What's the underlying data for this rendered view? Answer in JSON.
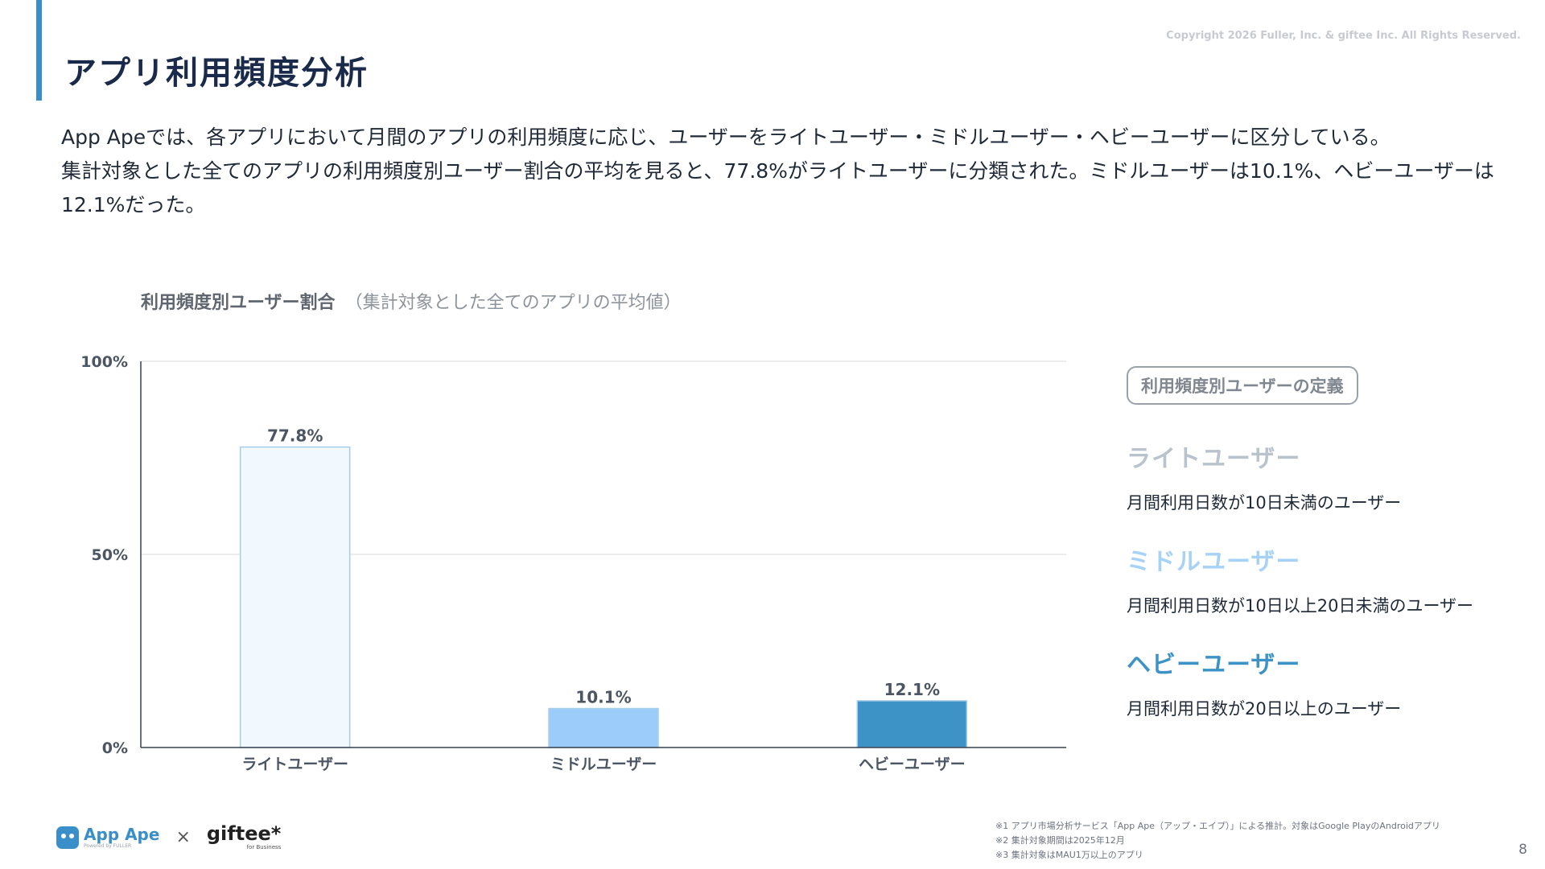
{
  "header": {
    "title": "アプリ利用頻度分析",
    "copyright": "Copyright 2026 Fuller, Inc. & giftee Inc. All Rights Reserved."
  },
  "intro": {
    "line1": "App Apeでは、各アプリにおいて月間のアプリの利用頻度に応じ、ユーザーをライトユーザー・ミドルユーザー・ヘビーユーザーに区分している。",
    "line2": "集計対象とした全てのアプリの利用頻度別ユーザー割合の平均を見ると、77.8%がライトユーザーに分類された。ミドルユーザーは10.1%、ヘビーユーザーは12.1%だった。"
  },
  "chart_data": {
    "type": "bar",
    "title": "利用頻度別ユーザー割合",
    "subtitle": "（集計対象とした全てのアプリの平均値）",
    "categories": [
      "ライトユーザー",
      "ミドルユーザー",
      "ヘビーユーザー"
    ],
    "values": [
      77.8,
      10.1,
      12.1
    ],
    "data_labels": [
      "77.8%",
      "10.1%",
      "12.1%"
    ],
    "bar_colors": [
      "#f1f8fe",
      "#9ccdfa",
      "#3d93c6"
    ],
    "bar_stroke": "#a8cde8",
    "yticks": [
      0,
      50,
      100
    ],
    "ytick_labels": [
      "0%",
      "50%",
      "100%"
    ],
    "ylim": [
      0,
      100
    ],
    "xlabel": "",
    "ylabel": "",
    "grid": true
  },
  "definitions": {
    "badge": "利用頻度別ユーザーの定義",
    "items": [
      {
        "name": "ライトユーザー",
        "desc": "月間利用日数が10日未満のユーザー",
        "color": "#b8c3ce"
      },
      {
        "name": "ミドルユーザー",
        "desc": "月間利用日数が10日以上20日未満のユーザー",
        "color": "#a7d2f7"
      },
      {
        "name": "ヘビーユーザー",
        "desc": "月間利用日数が20日以上のユーザー",
        "color": "#3d93c6"
      }
    ]
  },
  "footer": {
    "appape_name": "App Ape",
    "appape_powered": "Powered by FULLER",
    "times": "×",
    "giftee_name": "giftee*",
    "giftee_sub": "for Business",
    "notes": [
      "※1 アプリ市場分析サービス「App Ape（アップ・エイプ）」による推計。対象はGoogle PlayのAndroidアプリ",
      "※2 集計対象期間は2025年12月",
      "※3 集計対象はMAU1万以上のアプリ"
    ],
    "page_number": "8"
  }
}
